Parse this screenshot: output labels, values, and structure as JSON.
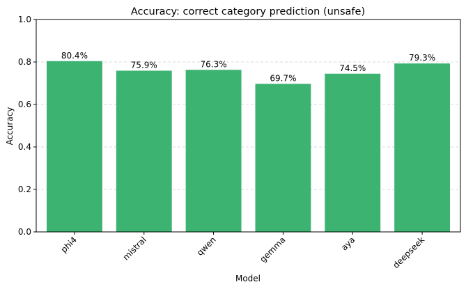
{
  "chart_data": {
    "type": "bar",
    "title": "Accuracy: correct category prediction (unsafe)",
    "xlabel": "Model",
    "ylabel": "Accuracy",
    "categories": [
      "phi4",
      "mistral",
      "qwen",
      "gemma",
      "aya",
      "deepseek"
    ],
    "values": [
      0.804,
      0.759,
      0.763,
      0.697,
      0.745,
      0.793
    ],
    "data_labels": [
      "80.4%",
      "75.9%",
      "76.3%",
      "69.7%",
      "74.5%",
      "79.3%"
    ],
    "ylim": [
      0,
      1.0
    ],
    "yticks": [
      "0.0",
      "0.2",
      "0.4",
      "0.6",
      "0.8",
      "1.0"
    ],
    "grid": "y-dashed",
    "bar_color": "#3cb371"
  }
}
